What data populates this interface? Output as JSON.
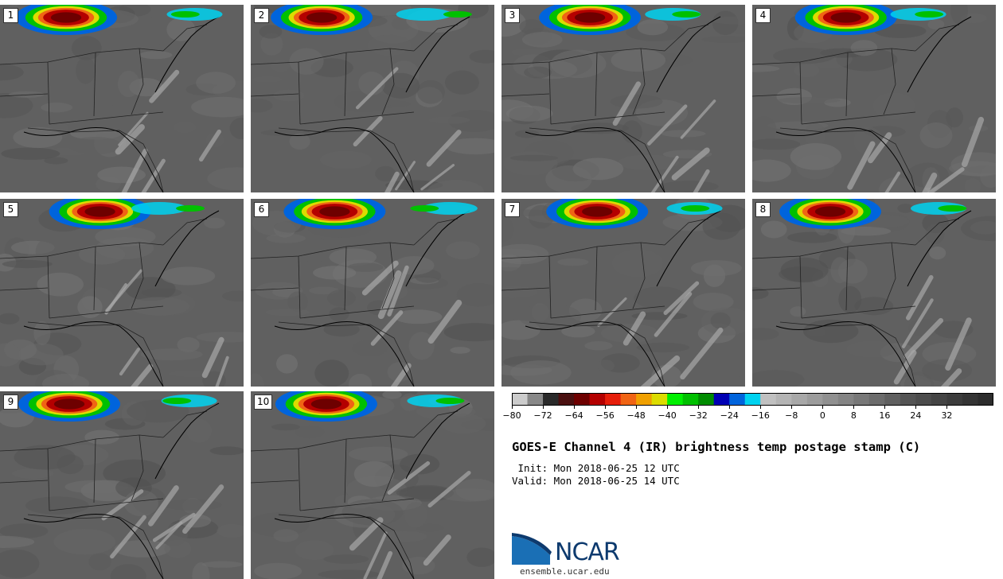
{
  "product": {
    "title": "GOES-E Channel 4 (IR) brightness temp postage stamp (C)",
    "init": " Init: Mon 2018-06-25 12 UTC",
    "valid": "Valid: Mon 2018-06-25 14 UTC"
  },
  "members": [
    {
      "label": "1"
    },
    {
      "label": "2"
    },
    {
      "label": "3"
    },
    {
      "label": "4"
    },
    {
      "label": "5"
    },
    {
      "label": "6"
    },
    {
      "label": "7"
    },
    {
      "label": "8"
    },
    {
      "label": "9"
    },
    {
      "label": "10"
    }
  ],
  "colorbar": {
    "min": -80,
    "max": 44,
    "step": 4,
    "tick_labels": [
      "-80",
      "-72",
      "-64",
      "-56",
      "-48",
      "-40",
      "-32",
      "-24",
      "-16",
      "-8",
      "0",
      "8",
      "16",
      "24",
      "32"
    ],
    "tick_values": [
      -80,
      -72,
      -64,
      -56,
      -48,
      -40,
      -32,
      -24,
      -16,
      -8,
      0,
      8,
      16,
      24,
      32
    ],
    "colors": [
      "#cccccc",
      "#888888",
      "#2a2a2a",
      "#4a1010",
      "#6e0000",
      "#b40000",
      "#e61e0a",
      "#f06414",
      "#f0a000",
      "#dcdc00",
      "#00f000",
      "#00c000",
      "#008c00",
      "#0000b4",
      "#0064dc",
      "#00d2f0",
      "#c0c0c0",
      "#b4b4b4",
      "#a8a8a8",
      "#9c9c9c",
      "#909090",
      "#848484",
      "#787878",
      "#6c6c6c",
      "#606060",
      "#545454",
      "#4c4c4c",
      "#444444",
      "#3c3c3c",
      "#343434",
      "#2c2c2c"
    ]
  },
  "branding": {
    "logo_text": "NCAR",
    "site": "ensemble.ucar.edu"
  }
}
